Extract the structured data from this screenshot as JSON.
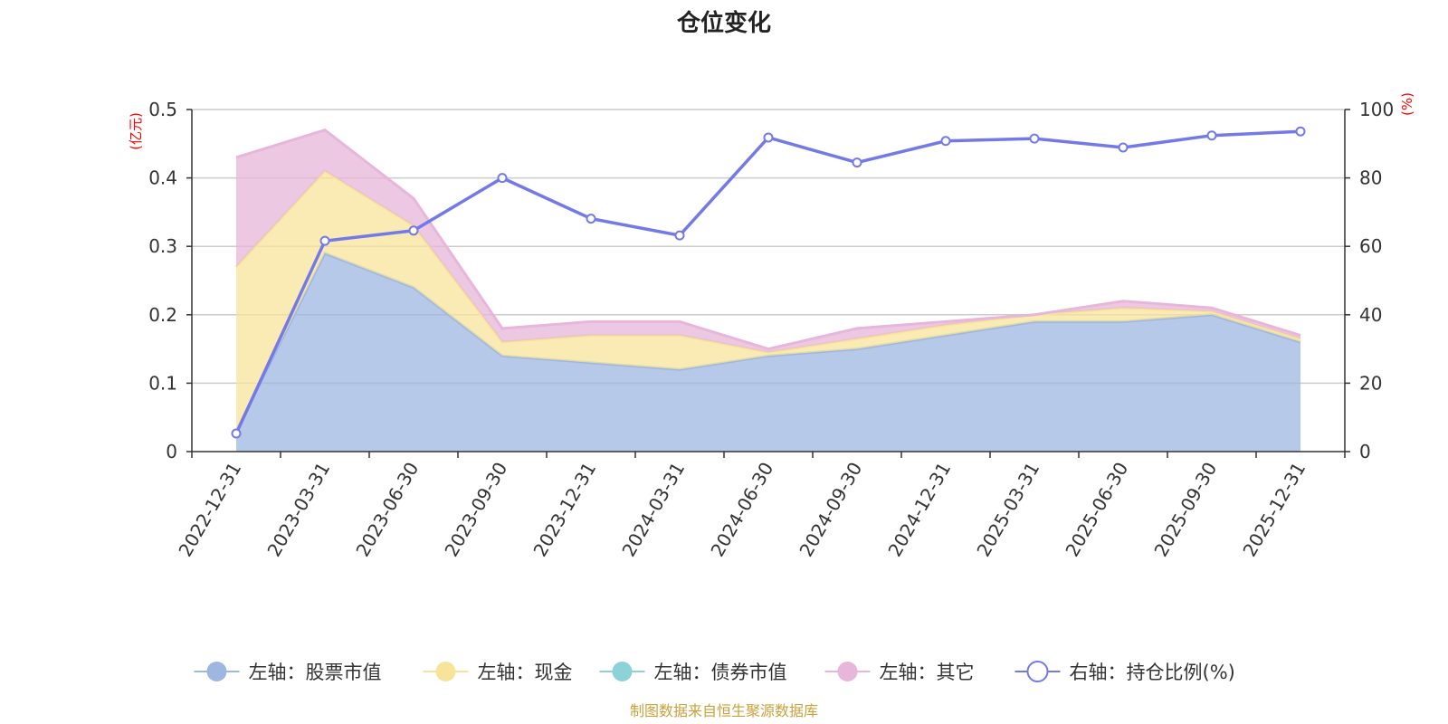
{
  "chart_data": {
    "type": "area",
    "title": "仓位变化",
    "categories": [
      "2022-12-31",
      "2023-03-31",
      "2023-06-30",
      "2023-09-30",
      "2023-12-31",
      "2024-03-31",
      "2024-06-30",
      "2024-09-30",
      "2024-12-31",
      "2025-03-31",
      "2025-06-30",
      "2025-09-30",
      "2025-12-31"
    ],
    "left_axis": {
      "unit": "(亿元)",
      "ylim": [
        0,
        0.5
      ],
      "ticks": [
        "0",
        "0.1",
        "0.2",
        "0.3",
        "0.4",
        "0.5"
      ]
    },
    "right_axis": {
      "unit": "(%)",
      "ylim": [
        0,
        100
      ],
      "ticks": [
        "0",
        "20",
        "40",
        "60",
        "80",
        "100"
      ]
    },
    "series": [
      {
        "name": "左轴：股票市值",
        "axis": "left",
        "kind": "stacked-area",
        "color": "#9db7e0",
        "values": [
          0.03,
          0.29,
          0.24,
          0.14,
          0.13,
          0.12,
          0.14,
          0.15,
          0.17,
          0.19,
          0.19,
          0.2,
          0.16
        ]
      },
      {
        "name": "左轴：现金",
        "axis": "left",
        "kind": "stacked-area",
        "color": "#f7e49a",
        "values": [
          0.24,
          0.12,
          0.09,
          0.02,
          0.04,
          0.05,
          0.005,
          0.015,
          0.015,
          0.01,
          0.02,
          0.005,
          0.005
        ]
      },
      {
        "name": "左轴：债券市值",
        "axis": "left",
        "kind": "stacked-area",
        "color": "#8dd2d8",
        "values": [
          0,
          0,
          0,
          0,
          0,
          0,
          0,
          0,
          0,
          0,
          0,
          0,
          0
        ]
      },
      {
        "name": "左轴：其它",
        "axis": "left",
        "kind": "stacked-area",
        "color": "#e7b6da",
        "values": [
          0.16,
          0.06,
          0.04,
          0.02,
          0.02,
          0.02,
          0.005,
          0.015,
          0.005,
          0,
          0.01,
          0.005,
          0.005
        ]
      },
      {
        "name": "右轴：持仓比例(%)",
        "axis": "right",
        "kind": "line",
        "color": "#7479e8",
        "values": [
          5.3,
          61.6,
          64.6,
          80.0,
          68.1,
          63.2,
          91.8,
          84.5,
          90.8,
          91.5,
          88.9,
          92.4,
          93.6
        ]
      }
    ],
    "legend_position": "bottom",
    "source": "制图数据来自恒生聚源数据库"
  }
}
